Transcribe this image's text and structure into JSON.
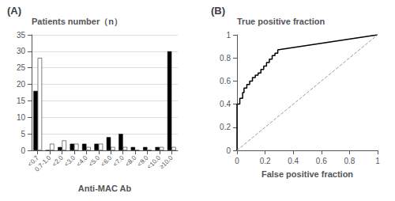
{
  "chart_data": [
    {
      "type": "bar",
      "title": "(A)",
      "xlabel": "Anti-MAC Ab",
      "ylabel": "Patients number（n）",
      "categories": [
        "<0.7",
        "0.7-1.0",
        "<2.0",
        "<3.0",
        "<4.0",
        "<5.0",
        "<6.0",
        "<7.0",
        "<8.0",
        "<9.0",
        "<10.0",
        "≥10.0"
      ],
      "series": [
        {
          "color": "#000000",
          "values": [
            18,
            0,
            1,
            2,
            2,
            2,
            4,
            5,
            1,
            1,
            1,
            30
          ]
        },
        {
          "color": "#ffffff",
          "values": [
            28,
            2,
            3,
            2,
            1,
            2,
            1,
            1,
            0,
            0,
            1,
            1
          ]
        }
      ],
      "ylim": [
        0,
        35
      ],
      "yticks": [
        0,
        5,
        10,
        15,
        20,
        25,
        30,
        35
      ],
      "grid": true
    },
    {
      "type": "line",
      "title": "(B)",
      "xlabel": "False positive fraction",
      "ylabel": "True positive fraction",
      "series": [
        {
          "color": "#000000",
          "line_style": "solid",
          "x": [
            0.0,
            0.0,
            0.02,
            0.02,
            0.04,
            0.04,
            0.05,
            0.05,
            0.07,
            0.07,
            0.09,
            0.09,
            0.11,
            0.11,
            0.13,
            0.13,
            0.15,
            0.15,
            0.17,
            0.17,
            0.19,
            0.19,
            0.21,
            0.21,
            0.23,
            0.23,
            0.25,
            0.25,
            0.27,
            0.27,
            0.29,
            0.29,
            1.0
          ],
          "values": [
            0.0,
            0.4,
            0.4,
            0.45,
            0.45,
            0.5,
            0.5,
            0.54,
            0.54,
            0.57,
            0.57,
            0.6,
            0.6,
            0.63,
            0.63,
            0.65,
            0.65,
            0.67,
            0.67,
            0.7,
            0.7,
            0.73,
            0.73,
            0.76,
            0.76,
            0.79,
            0.79,
            0.82,
            0.82,
            0.84,
            0.84,
            0.87,
            1.0
          ]
        },
        {
          "color": "#999999",
          "line_style": "dashed",
          "x": [
            0,
            1
          ],
          "values": [
            0,
            1
          ]
        }
      ],
      "xlim": [
        0,
        1
      ],
      "ylim": [
        0,
        1
      ],
      "xticks": [
        0,
        0.2,
        0.4,
        0.6,
        0.8,
        1
      ],
      "yticks": [
        0,
        0.2,
        0.4,
        0.6,
        0.8,
        1
      ],
      "grid": false
    }
  ]
}
